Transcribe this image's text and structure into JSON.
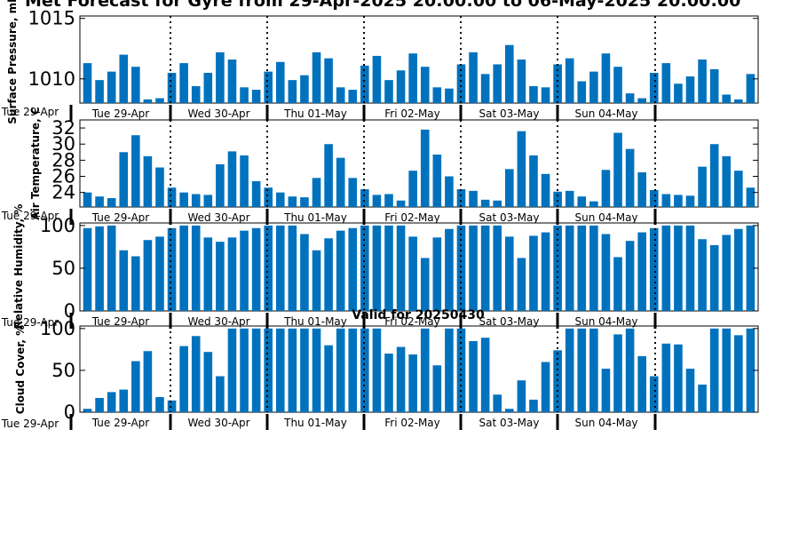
{
  "figure": {
    "title": "Met Forecast for Gyre from 29-Apr-2025 20:00:00 to 06-May-2025 20:00:00",
    "subtitle": "Valid for 20250430",
    "bar_color": "#0072bd",
    "day_labels": [
      "Tue 29-Apr",
      "Wed 30-Apr",
      "Thu 01-May",
      "Fri 02-May",
      "Sat 03-May",
      "Sun 04-May"
    ]
  },
  "chart_data": [
    {
      "type": "bar",
      "ylabel": "Surface Pressure, mb",
      "ylim": [
        1008,
        1015.2
      ],
      "yticks": [
        1010,
        1015
      ],
      "start_label": "Tue 29-Apr",
      "values": [
        1011.3,
        1009.9,
        1010.6,
        1012.0,
        1011.0,
        1008.3,
        1008.4,
        1010.5,
        1011.3,
        1009.4,
        1010.5,
        1012.2,
        1011.6,
        1009.3,
        1009.1,
        1010.6,
        1011.4,
        1009.9,
        1010.3,
        1012.2,
        1011.7,
        1009.3,
        1009.1,
        1011.1,
        1011.9,
        1009.9,
        1010.7,
        1012.1,
        1011.0,
        1009.3,
        1009.2,
        1011.2,
        1012.2,
        1010.4,
        1011.2,
        1012.8,
        1011.6,
        1009.4,
        1009.3,
        1011.2,
        1011.7,
        1009.8,
        1010.6,
        1012.1,
        1011.0,
        1008.8,
        1008.4,
        1010.5,
        1011.3,
        1009.6,
        1010.2,
        1011.6,
        1010.8,
        1008.7,
        1008.3,
        1010.4
      ]
    },
    {
      "type": "bar",
      "ylabel": "Air Temperature, C",
      "ylim": [
        22.2,
        33.0
      ],
      "yticks": [
        24,
        26,
        28,
        30,
        32
      ],
      "start_label": "Tue 29-Apr",
      "values": [
        24.0,
        23.5,
        23.3,
        29.0,
        31.1,
        28.5,
        27.1,
        24.6,
        24.0,
        23.8,
        23.7,
        27.5,
        29.1,
        28.6,
        25.4,
        24.6,
        24.0,
        23.5,
        23.4,
        25.8,
        30.0,
        28.3,
        25.8,
        24.4,
        23.7,
        23.8,
        23.0,
        26.7,
        31.8,
        28.7,
        26.0,
        24.4,
        24.2,
        23.1,
        23.0,
        26.9,
        31.6,
        28.6,
        26.3,
        24.1,
        24.2,
        23.5,
        22.9,
        26.8,
        31.4,
        29.4,
        26.5,
        24.3,
        23.8,
        23.7,
        23.6,
        27.2,
        30.0,
        28.5,
        26.7,
        24.6
      ]
    },
    {
      "type": "bar",
      "ylabel": "Relative Humidity, %",
      "ylim": [
        0,
        103
      ],
      "yticks": [
        0,
        50,
        100
      ],
      "start_label": "Tue 29-Apr",
      "values": [
        97,
        99,
        100,
        71,
        64,
        83,
        87,
        97,
        100,
        100,
        86,
        81,
        86,
        94,
        97,
        100,
        100,
        100,
        90,
        71,
        85,
        94,
        97,
        100,
        100,
        100,
        100,
        87,
        62,
        86,
        96,
        100,
        100,
        100,
        100,
        87,
        62,
        88,
        92,
        100,
        100,
        100,
        100,
        90,
        63,
        82,
        92,
        97,
        100,
        100,
        100,
        84,
        77,
        89,
        96,
        100
      ]
    },
    {
      "type": "bar",
      "ylabel": "Cloud Cover, %",
      "ylim": [
        0,
        103
      ],
      "yticks": [
        0,
        50,
        100
      ],
      "start_label": "Tue 29-Apr",
      "values": [
        4,
        17,
        24,
        27,
        61,
        73,
        18,
        14,
        79,
        91,
        72,
        43,
        100,
        100,
        100,
        100,
        100,
        100,
        100,
        100,
        80,
        100,
        100,
        100,
        100,
        70,
        78,
        69,
        100,
        56,
        100,
        100,
        85,
        89,
        21,
        4,
        38,
        15,
        60,
        74,
        100,
        100,
        100,
        52,
        93,
        100,
        67,
        43,
        82,
        81,
        52,
        33,
        100,
        100,
        92,
        100
      ]
    }
  ]
}
